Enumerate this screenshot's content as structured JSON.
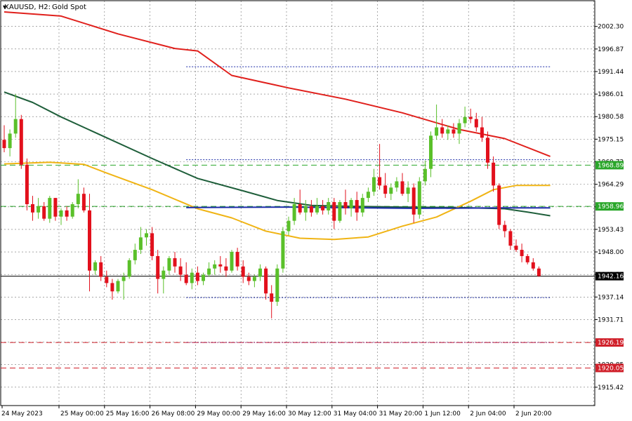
{
  "header": {
    "symbol_text": "XAUUSD, H2:",
    "desc_text": "Gold Spot"
  },
  "chart_data": {
    "type": "candlestick",
    "title": "XAUUSD, H2:  Gold Spot",
    "ylim": [
      1911.0,
      2008.5
    ],
    "y_ticks": [
      "2002.30",
      "1996.87",
      "1991.44",
      "1986.01",
      "1980.58",
      "1975.15",
      "1969.72",
      "1964.29",
      "1958.86",
      "1953.43",
      "1948.00",
      "1942.57",
      "1937.14",
      "1931.71",
      "1926.28",
      "1920.85",
      "1915.42"
    ],
    "x_labels": [
      "24 May 2023",
      "25 May 00:00",
      "25 May 16:00",
      "26 May 08:00",
      "29 May 00:00",
      "29 May 16:00",
      "30 May 12:00",
      "31 May 04:00",
      "31 May 20:00",
      "1 Jun 12:00",
      "2 Jun 04:00",
      "2 Jun 20:00"
    ],
    "x_label_index": [
      0,
      10,
      18,
      26,
      34,
      42,
      50,
      58,
      66,
      74,
      82,
      90
    ],
    "grid": "dashed",
    "candles": [
      {
        "o": 1975.0,
        "h": 1978.5,
        "l": 1972.0,
        "c": 1973.0
      },
      {
        "o": 1973.0,
        "h": 1977.5,
        "l": 1971.0,
        "c": 1976.5
      },
      {
        "o": 1976.5,
        "h": 1986.0,
        "l": 1975.5,
        "c": 1980.0
      },
      {
        "o": 1980.0,
        "h": 1981.0,
        "l": 1968.0,
        "c": 1969.0
      },
      {
        "o": 1969.0,
        "h": 1970.5,
        "l": 1958.0,
        "c": 1959.5
      },
      {
        "o": 1959.5,
        "h": 1961.5,
        "l": 1955.5,
        "c": 1957.5
      },
      {
        "o": 1957.5,
        "h": 1961.0,
        "l": 1956.0,
        "c": 1959.0
      },
      {
        "o": 1959.0,
        "h": 1960.0,
        "l": 1955.5,
        "c": 1956.0
      },
      {
        "o": 1956.0,
        "h": 1961.5,
        "l": 1955.0,
        "c": 1961.0
      },
      {
        "o": 1961.0,
        "h": 1961.0,
        "l": 1955.5,
        "c": 1956.5
      },
      {
        "o": 1956.5,
        "h": 1958.5,
        "l": 1954.5,
        "c": 1958.0
      },
      {
        "o": 1958.0,
        "h": 1959.0,
        "l": 1955.5,
        "c": 1956.5
      },
      {
        "o": 1956.5,
        "h": 1960.0,
        "l": 1956.0,
        "c": 1959.5
      },
      {
        "o": 1959.5,
        "h": 1965.5,
        "l": 1958.5,
        "c": 1962.0
      },
      {
        "o": 1962.0,
        "h": 1963.5,
        "l": 1957.5,
        "c": 1958.0
      },
      {
        "o": 1958.0,
        "h": 1962.0,
        "l": 1938.5,
        "c": 1943.5
      },
      {
        "o": 1943.5,
        "h": 1946.0,
        "l": 1942.5,
        "c": 1945.5
      },
      {
        "o": 1945.5,
        "h": 1947.0,
        "l": 1941.0,
        "c": 1942.0
      },
      {
        "o": 1942.0,
        "h": 1943.5,
        "l": 1939.5,
        "c": 1940.5
      },
      {
        "o": 1940.5,
        "h": 1941.5,
        "l": 1936.5,
        "c": 1938.5
      },
      {
        "o": 1938.5,
        "h": 1941.5,
        "l": 1938.0,
        "c": 1941.0
      },
      {
        "o": 1941.0,
        "h": 1943.0,
        "l": 1936.5,
        "c": 1942.0
      },
      {
        "o": 1942.0,
        "h": 1946.5,
        "l": 1941.5,
        "c": 1946.0
      },
      {
        "o": 1946.0,
        "h": 1950.0,
        "l": 1945.0,
        "c": 1948.5
      },
      {
        "o": 1948.5,
        "h": 1954.0,
        "l": 1947.5,
        "c": 1951.5
      },
      {
        "o": 1951.5,
        "h": 1953.5,
        "l": 1949.5,
        "c": 1952.5
      },
      {
        "o": 1952.5,
        "h": 1954.0,
        "l": 1946.0,
        "c": 1947.0
      },
      {
        "o": 1947.0,
        "h": 1948.5,
        "l": 1938.0,
        "c": 1941.5
      },
      {
        "o": 1941.5,
        "h": 1944.5,
        "l": 1938.0,
        "c": 1943.5
      },
      {
        "o": 1943.5,
        "h": 1947.0,
        "l": 1942.5,
        "c": 1946.5
      },
      {
        "o": 1946.5,
        "h": 1948.0,
        "l": 1943.0,
        "c": 1944.5
      },
      {
        "o": 1944.5,
        "h": 1946.5,
        "l": 1941.0,
        "c": 1942.5
      },
      {
        "o": 1942.5,
        "h": 1945.5,
        "l": 1940.0,
        "c": 1940.5
      },
      {
        "o": 1940.5,
        "h": 1944.0,
        "l": 1939.0,
        "c": 1943.0
      },
      {
        "o": 1943.0,
        "h": 1944.5,
        "l": 1940.0,
        "c": 1941.0
      },
      {
        "o": 1941.0,
        "h": 1943.0,
        "l": 1940.0,
        "c": 1942.5
      },
      {
        "o": 1942.5,
        "h": 1945.5,
        "l": 1942.0,
        "c": 1944.0
      },
      {
        "o": 1944.0,
        "h": 1946.0,
        "l": 1942.5,
        "c": 1945.0
      },
      {
        "o": 1945.0,
        "h": 1947.0,
        "l": 1943.0,
        "c": 1944.5
      },
      {
        "o": 1944.5,
        "h": 1946.5,
        "l": 1942.0,
        "c": 1943.5
      },
      {
        "o": 1943.5,
        "h": 1948.5,
        "l": 1943.0,
        "c": 1948.0
      },
      {
        "o": 1948.0,
        "h": 1949.0,
        "l": 1943.5,
        "c": 1944.5
      },
      {
        "o": 1944.5,
        "h": 1946.0,
        "l": 1940.5,
        "c": 1942.0
      },
      {
        "o": 1942.0,
        "h": 1943.0,
        "l": 1940.0,
        "c": 1941.0
      },
      {
        "o": 1941.0,
        "h": 1942.5,
        "l": 1939.5,
        "c": 1942.0
      },
      {
        "o": 1942.0,
        "h": 1945.0,
        "l": 1941.0,
        "c": 1944.0
      },
      {
        "o": 1944.0,
        "h": 1944.5,
        "l": 1936.5,
        "c": 1938.0
      },
      {
        "o": 1938.0,
        "h": 1940.0,
        "l": 1932.0,
        "c": 1936.0
      },
      {
        "o": 1936.0,
        "h": 1945.0,
        "l": 1935.0,
        "c": 1944.0
      },
      {
        "o": 1944.0,
        "h": 1954.0,
        "l": 1943.0,
        "c": 1953.0
      },
      {
        "o": 1953.0,
        "h": 1956.5,
        "l": 1952.0,
        "c": 1955.5
      },
      {
        "o": 1955.5,
        "h": 1961.0,
        "l": 1954.5,
        "c": 1959.5
      },
      {
        "o": 1959.5,
        "h": 1963.0,
        "l": 1957.0,
        "c": 1957.5
      },
      {
        "o": 1957.5,
        "h": 1960.5,
        "l": 1955.5,
        "c": 1959.0
      },
      {
        "o": 1959.0,
        "h": 1960.5,
        "l": 1956.5,
        "c": 1957.5
      },
      {
        "o": 1957.5,
        "h": 1961.0,
        "l": 1957.0,
        "c": 1959.0
      },
      {
        "o": 1959.0,
        "h": 1960.5,
        "l": 1957.0,
        "c": 1958.0
      },
      {
        "o": 1958.0,
        "h": 1961.0,
        "l": 1957.0,
        "c": 1960.0
      },
      {
        "o": 1960.0,
        "h": 1961.0,
        "l": 1953.5,
        "c": 1955.5
      },
      {
        "o": 1955.5,
        "h": 1960.5,
        "l": 1955.0,
        "c": 1960.0
      },
      {
        "o": 1960.0,
        "h": 1963.0,
        "l": 1957.0,
        "c": 1958.5
      },
      {
        "o": 1958.5,
        "h": 1961.0,
        "l": 1956.5,
        "c": 1960.5
      },
      {
        "o": 1960.5,
        "h": 1962.5,
        "l": 1955.5,
        "c": 1957.5
      },
      {
        "o": 1957.5,
        "h": 1962.0,
        "l": 1956.5,
        "c": 1961.0
      },
      {
        "o": 1961.0,
        "h": 1963.5,
        "l": 1960.0,
        "c": 1962.5
      },
      {
        "o": 1962.5,
        "h": 1968.0,
        "l": 1961.5,
        "c": 1966.0
      },
      {
        "o": 1966.0,
        "h": 1974.0,
        "l": 1963.0,
        "c": 1964.0
      },
      {
        "o": 1964.0,
        "h": 1967.0,
        "l": 1961.0,
        "c": 1962.0
      },
      {
        "o": 1962.0,
        "h": 1964.5,
        "l": 1960.5,
        "c": 1963.5
      },
      {
        "o": 1963.5,
        "h": 1966.0,
        "l": 1962.5,
        "c": 1965.0
      },
      {
        "o": 1965.0,
        "h": 1967.0,
        "l": 1961.5,
        "c": 1962.0
      },
      {
        "o": 1962.0,
        "h": 1965.0,
        "l": 1960.0,
        "c": 1963.5
      },
      {
        "o": 1963.5,
        "h": 1964.5,
        "l": 1955.0,
        "c": 1957.0
      },
      {
        "o": 1957.0,
        "h": 1966.0,
        "l": 1956.0,
        "c": 1965.0
      },
      {
        "o": 1965.0,
        "h": 1970.0,
        "l": 1964.0,
        "c": 1968.0
      },
      {
        "o": 1968.0,
        "h": 1977.0,
        "l": 1966.0,
        "c": 1976.0
      },
      {
        "o": 1976.0,
        "h": 1983.5,
        "l": 1975.0,
        "c": 1978.0
      },
      {
        "o": 1978.0,
        "h": 1980.0,
        "l": 1975.5,
        "c": 1976.5
      },
      {
        "o": 1976.5,
        "h": 1978.5,
        "l": 1975.0,
        "c": 1977.5
      },
      {
        "o": 1977.5,
        "h": 1979.0,
        "l": 1975.5,
        "c": 1976.5
      },
      {
        "o": 1976.5,
        "h": 1980.0,
        "l": 1974.0,
        "c": 1979.0
      },
      {
        "o": 1979.0,
        "h": 1983.0,
        "l": 1978.0,
        "c": 1980.5
      },
      {
        "o": 1980.5,
        "h": 1982.5,
        "l": 1979.0,
        "c": 1980.0
      },
      {
        "o": 1980.0,
        "h": 1981.5,
        "l": 1977.0,
        "c": 1978.0
      },
      {
        "o": 1978.0,
        "h": 1980.5,
        "l": 1974.5,
        "c": 1975.5
      },
      {
        "o": 1975.5,
        "h": 1977.0,
        "l": 1968.0,
        "c": 1969.5
      },
      {
        "o": 1969.5,
        "h": 1971.0,
        "l": 1962.5,
        "c": 1964.0
      },
      {
        "o": 1964.0,
        "h": 1964.5,
        "l": 1953.5,
        "c": 1954.5
      },
      {
        "o": 1954.5,
        "h": 1955.5,
        "l": 1951.5,
        "c": 1953.0
      },
      {
        "o": 1953.0,
        "h": 1953.5,
        "l": 1948.5,
        "c": 1949.5
      },
      {
        "o": 1949.5,
        "h": 1951.0,
        "l": 1948.0,
        "c": 1948.5
      },
      {
        "o": 1948.5,
        "h": 1950.0,
        "l": 1945.5,
        "c": 1947.0
      },
      {
        "o": 1947.0,
        "h": 1947.5,
        "l": 1945.0,
        "c": 1945.5
      },
      {
        "o": 1945.5,
        "h": 1946.5,
        "l": 1943.5,
        "c": 1944.0
      },
      {
        "o": 1944.0,
        "h": 1944.5,
        "l": 1942.0,
        "c": 1942.2
      }
    ],
    "moving_averages": [
      {
        "color": "#e0201c",
        "points": [
          [
            0,
            2005.8
          ],
          [
            10,
            2004.8
          ],
          [
            20,
            2000.5
          ],
          [
            30,
            1997.0
          ],
          [
            34,
            1996.4
          ],
          [
            40,
            1990.5
          ],
          [
            50,
            1987.5
          ],
          [
            60,
            1984.8
          ],
          [
            70,
            1981.5
          ],
          [
            80,
            1977.5
          ],
          [
            88,
            1975.3
          ],
          [
            96,
            1971.0
          ]
        ]
      },
      {
        "color": "#1e5e3a",
        "points": [
          [
            0,
            1986.5
          ],
          [
            5,
            1984.0
          ],
          [
            10,
            1980.5
          ],
          [
            18,
            1975.5
          ],
          [
            26,
            1970.5
          ],
          [
            34,
            1965.7
          ],
          [
            42,
            1962.7
          ],
          [
            48,
            1960.4
          ],
          [
            54,
            1959.2
          ],
          [
            60,
            1959.0
          ],
          [
            70,
            1958.8
          ],
          [
            80,
            1958.7
          ],
          [
            88,
            1958.4
          ],
          [
            92,
            1957.6
          ],
          [
            96,
            1956.7
          ]
        ]
      },
      {
        "color": "#f0b414",
        "points": [
          [
            0,
            1969.2
          ],
          [
            8,
            1969.6
          ],
          [
            14,
            1969.1
          ],
          [
            18,
            1967.0
          ],
          [
            26,
            1963.0
          ],
          [
            34,
            1958.4
          ],
          [
            40,
            1956.2
          ],
          [
            46,
            1953.0
          ],
          [
            52,
            1951.3
          ],
          [
            58,
            1951.0
          ],
          [
            64,
            1951.6
          ],
          [
            70,
            1954.2
          ],
          [
            76,
            1956.4
          ],
          [
            82,
            1960.2
          ],
          [
            86,
            1963.0
          ],
          [
            90,
            1964.0
          ],
          [
            96,
            1964.0
          ]
        ]
      },
      {
        "color": "#1a2aa8",
        "points": [
          [
            32,
            1958.7
          ],
          [
            50,
            1958.8
          ],
          [
            72,
            1958.5
          ],
          [
            88,
            1958.6
          ],
          [
            96,
            1958.6
          ]
        ]
      }
    ],
    "levels": [
      {
        "value": 1968.89,
        "label": "1968.89",
        "color": "#2aa62a",
        "style": "dash-long",
        "tag": true
      },
      {
        "value": 1958.96,
        "label": "1958.96",
        "color": "#2aa62a",
        "style": "dash-long",
        "tag": true
      },
      {
        "value": 1926.19,
        "label": "1926.19",
        "color": "#d0202a",
        "style": "dash-long",
        "tag": true
      },
      {
        "value": 1920.05,
        "label": "1920.05",
        "color": "#d0202a",
        "style": "dash-long",
        "tag": true
      },
      {
        "value": 1942.16,
        "label": "1942.16",
        "color": "#000000",
        "style": "solid",
        "tag": true
      }
    ],
    "range_lines": [
      {
        "value": 1992.6,
        "from": 32,
        "to": 96,
        "color": "#1a2aa8"
      },
      {
        "value": 1970.2,
        "from": 32,
        "to": 96,
        "color": "#1a2aa8"
      },
      {
        "value": 1937.0,
        "from": 32,
        "to": 96,
        "color": "#1a2aa8"
      },
      {
        "value": 1926.19,
        "from": 32,
        "to": 96,
        "color": "#a01c6a"
      }
    ]
  }
}
